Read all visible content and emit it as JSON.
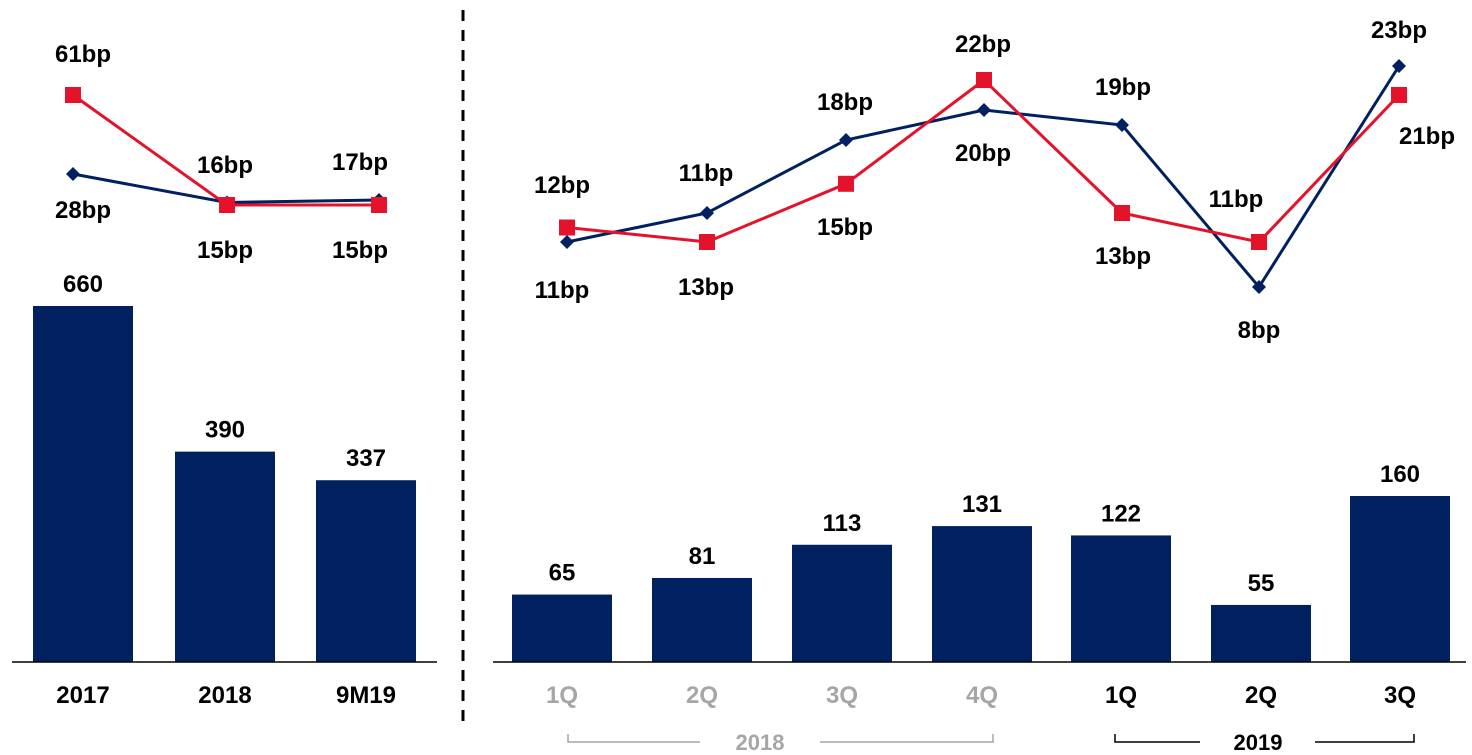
{
  "colors": {
    "bar": "#002060",
    "line_navy": "#002060",
    "line_red": "#e4132b",
    "axis": "#000000",
    "muted": "#a6a6a6"
  },
  "chart_data": [
    {
      "type": "bar",
      "categories": [
        "2017",
        "2018",
        "9M19"
      ],
      "values": [
        660,
        390,
        337
      ],
      "value_labels": [
        "660",
        "390",
        "337"
      ]
    },
    {
      "type": "line",
      "categories": [
        "2017",
        "2018",
        "9M19"
      ],
      "series": [
        {
          "color": "#002060",
          "marker": "diamond",
          "values": [
            28,
            16,
            17
          ],
          "labels": [
            "28bp",
            "16bp",
            "17bp"
          ]
        },
        {
          "color": "#e4132b",
          "marker": "square",
          "values": [
            61,
            15,
            15
          ],
          "labels": [
            "61bp",
            "15bp",
            "15bp"
          ]
        }
      ]
    },
    {
      "type": "bar",
      "categories": [
        "1Q",
        "2Q",
        "3Q",
        "4Q",
        "1Q",
        "2Q",
        "3Q"
      ],
      "groups": [
        {
          "label": "2018",
          "span": [
            0,
            3
          ]
        },
        {
          "label": "2019",
          "span": [
            4,
            6
          ]
        }
      ],
      "values": [
        65,
        81,
        113,
        131,
        122,
        55,
        160
      ],
      "value_labels": [
        "65",
        "81",
        "113",
        "131",
        "122",
        "55",
        "160"
      ]
    },
    {
      "type": "line",
      "categories": [
        "1Q",
        "2Q",
        "3Q",
        "4Q",
        "1Q",
        "2Q",
        "3Q"
      ],
      "series": [
        {
          "color": "#002060",
          "marker": "diamond",
          "values": [
            11,
            13,
            18,
            20,
            19,
            8,
            23
          ],
          "labels": [
            "11bp",
            "13bp",
            "18bp",
            "20bp",
            "19bp",
            "8bp",
            "23bp"
          ]
        },
        {
          "color": "#e4132b",
          "marker": "square",
          "values": [
            12,
            11,
            15,
            22,
            13,
            11,
            21
          ],
          "labels": [
            "12bp",
            "11bp",
            "15bp",
            "22bp",
            "13bp",
            "11bp",
            "21bp"
          ]
        }
      ]
    }
  ]
}
